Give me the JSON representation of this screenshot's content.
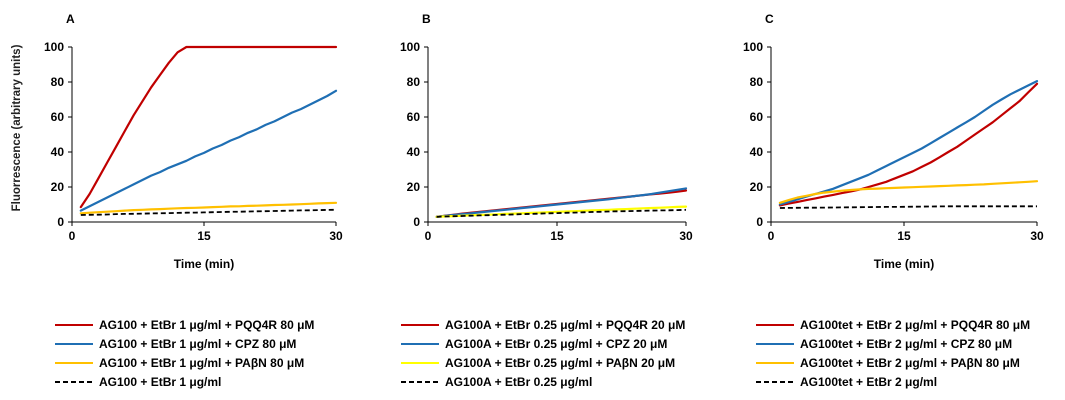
{
  "y_axis_label": "Fluorrescence (arbitrary units)",
  "chart_data": [
    {
      "type": "line",
      "panel": "A",
      "xlabel": "Time (min)",
      "xlim": [
        0,
        30
      ],
      "ylim": [
        0,
        100
      ],
      "xticks": [
        0,
        15,
        30
      ],
      "yticks": [
        0,
        20,
        40,
        60,
        80,
        100
      ],
      "x": [
        1,
        2,
        3,
        4,
        5,
        6,
        7,
        8,
        9,
        10,
        11,
        12,
        13,
        14,
        15,
        16,
        17,
        18,
        19,
        20,
        21,
        22,
        23,
        24,
        25,
        26,
        27,
        28,
        29,
        30
      ],
      "series": [
        {
          "name": "AG100 + EtBr 1 μg/ml + PQQ4R 80 μM",
          "color": "#c00000",
          "dash": "",
          "values": [
            8.5,
            16,
            25,
            34,
            43,
            52,
            61,
            69,
            77,
            84,
            91,
            97,
            100,
            100,
            100,
            100,
            100,
            100,
            100,
            100,
            100,
            100,
            100,
            100,
            100,
            100,
            100,
            100,
            100,
            100
          ]
        },
        {
          "name": "AG100 + EtBr 1 μg/ml + CPZ 80 μM",
          "color": "#1f6fb4",
          "dash": "",
          "values": [
            6.5,
            9,
            11.5,
            14,
            16.5,
            19,
            21.5,
            24,
            26.5,
            28.5,
            31,
            33,
            35,
            37.5,
            39.5,
            42,
            44,
            46.5,
            48.5,
            51,
            53,
            55.5,
            57.5,
            60,
            62.5,
            64.5,
            67,
            69.5,
            72,
            75
          ]
        },
        {
          "name": "AG100 + EtBr 1 μg/ml + PAβN 80 μM",
          "color": "#ffc000",
          "dash": "",
          "values": [
            5,
            5.3,
            5.6,
            5.9,
            6.2,
            6.5,
            6.8,
            7,
            7.2,
            7.4,
            7.6,
            7.8,
            8,
            8.1,
            8.3,
            8.5,
            8.7,
            8.9,
            9,
            9.2,
            9.3,
            9.5,
            9.7,
            9.8,
            10,
            10.2,
            10.4,
            10.6,
            10.8,
            11
          ]
        },
        {
          "name": "AG100 + EtBr 1 μg/ml",
          "color": "#000000",
          "dash": "5,3",
          "values": [
            4,
            4.1,
            4.2,
            4.3,
            4.5,
            4.6,
            4.7,
            4.8,
            4.9,
            5,
            5.1,
            5.2,
            5.3,
            5.4,
            5.5,
            5.6,
            5.7,
            5.8,
            5.9,
            6,
            6.1,
            6.2,
            6.3,
            6.4,
            6.5,
            6.6,
            6.7,
            6.8,
            6.9,
            7
          ]
        }
      ]
    },
    {
      "type": "line",
      "panel": "B",
      "xlabel": "",
      "xlim": [
        0,
        30
      ],
      "ylim": [
        0,
        100
      ],
      "xticks": [
        0,
        15,
        30
      ],
      "yticks": [
        0,
        20,
        40,
        60,
        80,
        100
      ],
      "x": [
        1,
        2,
        3,
        4,
        5,
        6,
        7,
        8,
        9,
        10,
        11,
        12,
        13,
        14,
        15,
        16,
        17,
        18,
        19,
        20,
        21,
        22,
        23,
        24,
        25,
        26,
        27,
        28,
        29,
        30
      ],
      "series": [
        {
          "name": "AG100A + EtBr 0.25 μg/ml + PQQ4R 20 μM",
          "color": "#c00000",
          "dash": "",
          "values": [
            3,
            3.6,
            4.2,
            4.8,
            5.3,
            5.8,
            6.3,
            6.8,
            7.3,
            7.8,
            8.3,
            8.8,
            9.3,
            9.8,
            10.3,
            10.8,
            11.3,
            11.8,
            12.3,
            12.8,
            13.3,
            13.8,
            14.3,
            14.8,
            15.3,
            15.8,
            16.3,
            16.8,
            17.3,
            18
          ]
        },
        {
          "name": "AG100A + EtBr 0.25 μg/ml + CPZ 20 μM",
          "color": "#1f6fb4",
          "dash": "",
          "values": [
            3,
            3.5,
            4,
            4.5,
            5,
            5.5,
            6,
            6.5,
            7,
            7.5,
            8,
            8.5,
            9,
            9.5,
            10,
            10.5,
            11,
            11.5,
            12,
            12.5,
            13,
            13.6,
            14.2,
            14.8,
            15.4,
            16,
            16.8,
            17.6,
            18.4,
            19.2
          ]
        },
        {
          "name": "AG100A + EtBr 0.25 μg/ml + PAβN 20 μM",
          "color": "#ffff00",
          "dash": "",
          "values": [
            3,
            3.2,
            3.4,
            3.6,
            3.8,
            4,
            4.2,
            4.4,
            4.6,
            4.8,
            5,
            5.2,
            5.4,
            5.6,
            5.8,
            6,
            6.2,
            6.4,
            6.6,
            6.8,
            7,
            7.2,
            7.4,
            7.6,
            7.8,
            8,
            8.2,
            8.4,
            8.6,
            8.8
          ]
        },
        {
          "name": "AG100A + EtBr 0.25 μg/ml",
          "color": "#000000",
          "dash": "5,3",
          "values": [
            3,
            3.15,
            3.3,
            3.45,
            3.6,
            3.75,
            3.9,
            4.05,
            4.2,
            4.35,
            4.5,
            4.65,
            4.8,
            4.95,
            5.1,
            5.25,
            5.4,
            5.55,
            5.7,
            5.85,
            6,
            6.1,
            6.2,
            6.3,
            6.4,
            6.5,
            6.6,
            6.7,
            6.8,
            7
          ]
        }
      ]
    },
    {
      "type": "line",
      "panel": "C",
      "xlabel": "Time (min)",
      "xlim": [
        0,
        30
      ],
      "ylim": [
        0,
        100
      ],
      "xticks": [
        0,
        15,
        30
      ],
      "yticks": [
        0,
        20,
        40,
        60,
        80,
        100
      ],
      "x": [
        1,
        2,
        3,
        4,
        5,
        6,
        7,
        8,
        9,
        10,
        11,
        12,
        13,
        14,
        15,
        16,
        17,
        18,
        19,
        20,
        21,
        22,
        23,
        24,
        25,
        26,
        27,
        28,
        29,
        30
      ],
      "series": [
        {
          "name": "AG100tet + EtBr 2 μg/ml + PQQ4R 80 μM",
          "color": "#c00000",
          "dash": "",
          "values": [
            9.5,
            10.5,
            11.5,
            12.5,
            13.5,
            14.5,
            15.5,
            16.5,
            17.5,
            18.5,
            20,
            21.5,
            23,
            25,
            27,
            29,
            31.5,
            34,
            37,
            40,
            43,
            46.5,
            50,
            53.5,
            57,
            61,
            65,
            69,
            74,
            79
          ]
        },
        {
          "name": "AG100tet + EtBr 2 μg/ml + CPZ 80 μM",
          "color": "#1f6fb4",
          "dash": "",
          "values": [
            10,
            11.5,
            13,
            14.5,
            16,
            17.5,
            19,
            21,
            23,
            25,
            27,
            29.5,
            32,
            34.5,
            37,
            39.5,
            42,
            45,
            48,
            51,
            54,
            57,
            60,
            63.5,
            67,
            70,
            73,
            75.5,
            78,
            80.5
          ]
        },
        {
          "name": "AG100tet + EtBr 2 μg/ml + PAβN 80 μM",
          "color": "#ffc000",
          "dash": "",
          "values": [
            11,
            12.5,
            14,
            15,
            16,
            16.8,
            17.4,
            17.9,
            18.3,
            18.6,
            18.9,
            19.1,
            19.3,
            19.5,
            19.7,
            19.9,
            20.1,
            20.3,
            20.5,
            20.7,
            20.9,
            21.1,
            21.3,
            21.5,
            21.8,
            22.1,
            22.4,
            22.7,
            23,
            23.3
          ]
        },
        {
          "name": "AG100tet + EtBr 2 μg/ml",
          "color": "#000000",
          "dash": "5,3",
          "values": [
            8,
            8.05,
            8.1,
            8.15,
            8.2,
            8.25,
            8.3,
            8.35,
            8.4,
            8.45,
            8.5,
            8.55,
            8.6,
            8.65,
            8.7,
            8.75,
            8.8,
            8.85,
            8.9,
            8.95,
            9,
            9,
            9,
            9,
            9,
            9,
            9,
            9,
            9,
            9
          ]
        }
      ]
    }
  ]
}
